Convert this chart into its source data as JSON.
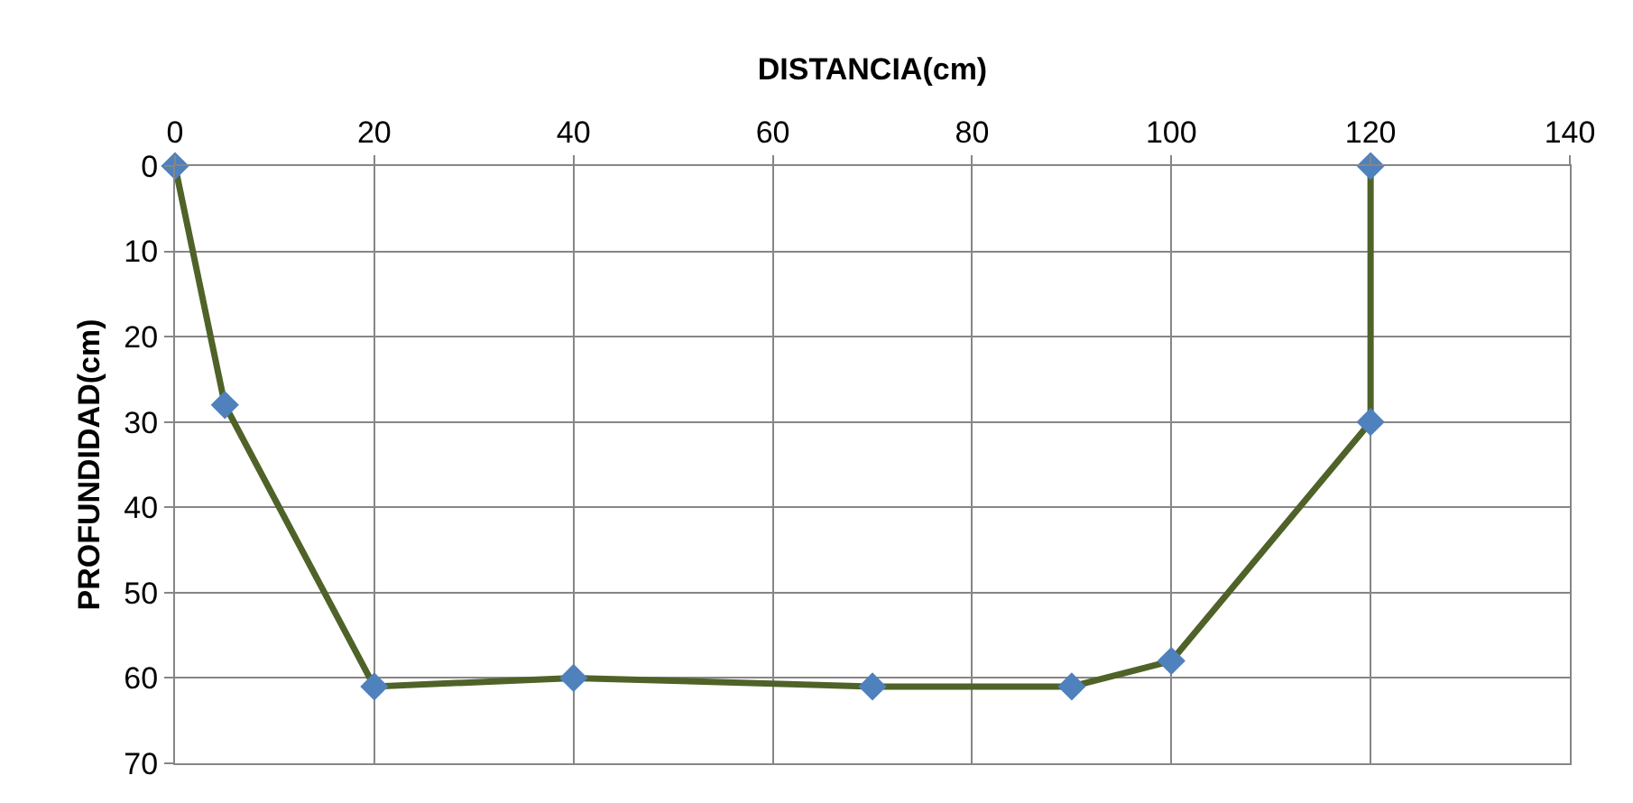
{
  "chart_data": {
    "type": "line",
    "xlabel": "DISTANCIA(cm)",
    "ylabel": "PROFUNDIDAD(cm)",
    "xlim": [
      0,
      140
    ],
    "xticks": [
      0,
      20,
      40,
      60,
      80,
      100,
      120,
      140
    ],
    "ylim": [
      70,
      0
    ],
    "yticks": [
      0,
      10,
      20,
      30,
      40,
      50,
      60,
      70
    ],
    "grid": true,
    "marker": "diamond",
    "line_style": "solid",
    "series": [
      {
        "color": "#4f6228",
        "colors": [
          "#4f81bd",
          "#4f81bd",
          "#4f81bd",
          "#4f81bd",
          "#4f81bd",
          "#4f81bd",
          "#4f81bd",
          "#4f81bd",
          "#4f81bd"
        ],
        "x": [
          0,
          5,
          20,
          40,
          70,
          90,
          100,
          120,
          120
        ],
        "values": [
          0,
          28,
          61,
          60,
          61,
          61,
          58,
          30,
          0
        ]
      }
    ]
  }
}
